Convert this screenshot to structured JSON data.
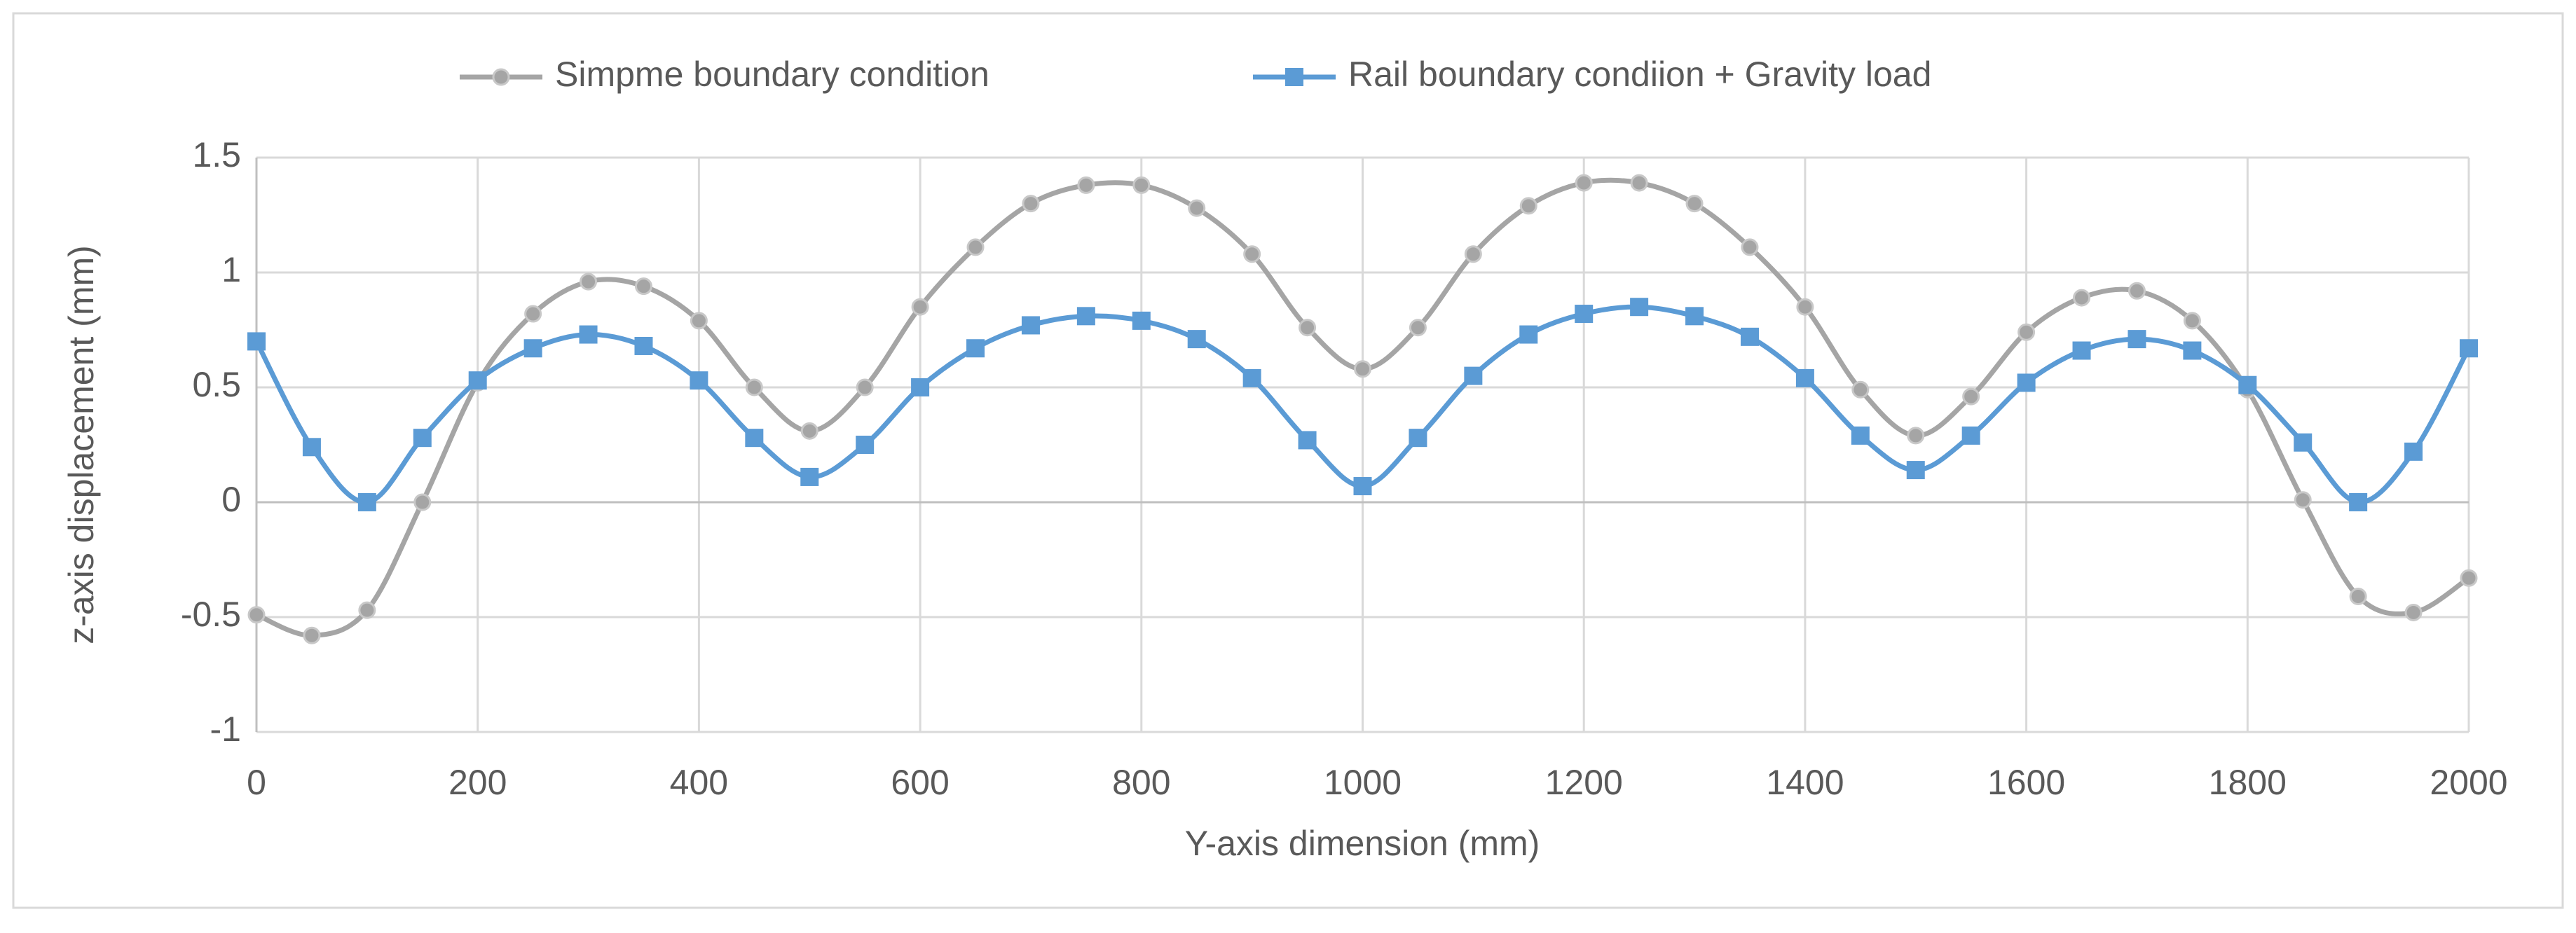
{
  "chart_data": {
    "type": "line",
    "x_label": "Y-axis dimension (mm)",
    "y_label": "z-axis displacement (mm)",
    "x": [
      0,
      50,
      100,
      150,
      200,
      250,
      300,
      350,
      400,
      450,
      500,
      550,
      600,
      650,
      700,
      750,
      800,
      850,
      900,
      950,
      1000,
      1050,
      1100,
      1150,
      1200,
      1250,
      1300,
      1350,
      1400,
      1450,
      1500,
      1550,
      1600,
      1650,
      1700,
      1750,
      1800,
      1850,
      1900,
      1950,
      2000
    ],
    "series": [
      {
        "name": "Simpme boundary condition",
        "color": "#a5a5a5",
        "marker": "circle",
        "values": [
          -0.49,
          -0.58,
          -0.47,
          0.0,
          0.52,
          0.82,
          0.96,
          0.94,
          0.79,
          0.5,
          0.31,
          0.5,
          0.85,
          1.11,
          1.3,
          1.38,
          1.38,
          1.28,
          1.08,
          0.76,
          0.58,
          0.76,
          1.08,
          1.29,
          1.39,
          1.39,
          1.3,
          1.11,
          0.85,
          0.49,
          0.29,
          0.46,
          0.74,
          0.89,
          0.92,
          0.79,
          0.49,
          0.01,
          -0.41,
          -0.48,
          -0.33
        ]
      },
      {
        "name": "Rail boundary condiion + Gravity load",
        "color": "#5b9bd5",
        "marker": "square",
        "values": [
          0.7,
          0.24,
          0.0,
          0.28,
          0.53,
          0.67,
          0.73,
          0.68,
          0.53,
          0.28,
          0.11,
          0.25,
          0.5,
          0.67,
          0.77,
          0.81,
          0.79,
          0.71,
          0.54,
          0.27,
          0.07,
          0.28,
          0.55,
          0.73,
          0.82,
          0.85,
          0.81,
          0.72,
          0.54,
          0.29,
          0.14,
          0.29,
          0.52,
          0.66,
          0.71,
          0.66,
          0.51,
          0.26,
          0.0,
          0.22,
          0.67
        ]
      }
    ],
    "xlim": [
      0,
      2000
    ],
    "xticks": [
      0,
      200,
      400,
      600,
      800,
      1000,
      1200,
      1400,
      1600,
      1800,
      2000
    ],
    "ylim": [
      -1,
      1.5
    ],
    "yticks": [
      -1,
      -0.5,
      0,
      0.5,
      1,
      1.5
    ],
    "grid": true,
    "legend": "top"
  }
}
